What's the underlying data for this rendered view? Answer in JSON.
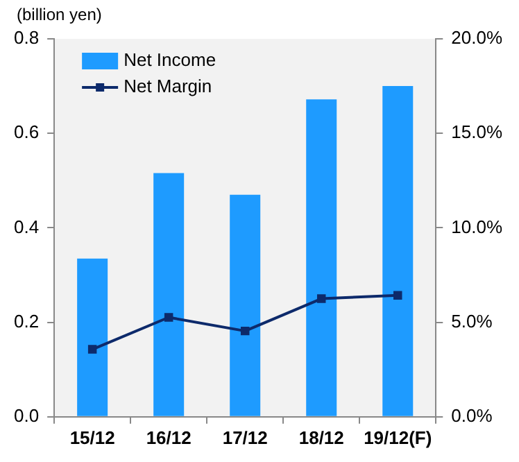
{
  "chart_data": {
    "type": "bar",
    "ylabel": "(billion yen)",
    "categories": [
      "15/12",
      "16/12",
      "17/12",
      "18/12",
      "19/12(F)"
    ],
    "series": [
      {
        "name": "Net Income",
        "color": "#1e9bff",
        "values": [
          0.335,
          0.516,
          0.47,
          0.672,
          0.7
        ]
      },
      {
        "name": "Net Margin",
        "type": "line",
        "axis": "y2",
        "color": "#0d2a6b",
        "values": [
          3.57,
          5.26,
          4.54,
          6.25,
          6.43
        ]
      }
    ],
    "ylim": [
      0,
      0.8
    ],
    "yticks": [
      {
        "value": 0,
        "label": "0.0"
      },
      {
        "value": 0.2,
        "label": "0.2"
      },
      {
        "value": 0.4,
        "label": "0.4"
      },
      {
        "value": 0.6,
        "label": "0.6"
      },
      {
        "value": 0.8,
        "label": "0.8"
      }
    ],
    "y2lim": [
      0,
      20
    ],
    "y2ticks": [
      {
        "value": 0,
        "label": "0.0%"
      },
      {
        "value": 5,
        "label": "5.0%"
      },
      {
        "value": 10,
        "label": "10.0%"
      },
      {
        "value": 15,
        "label": "15.0%"
      },
      {
        "value": 20,
        "label": "20.0%"
      }
    ],
    "grid": false,
    "legend": "top left",
    "marker": "square",
    "line_style": "solid"
  }
}
